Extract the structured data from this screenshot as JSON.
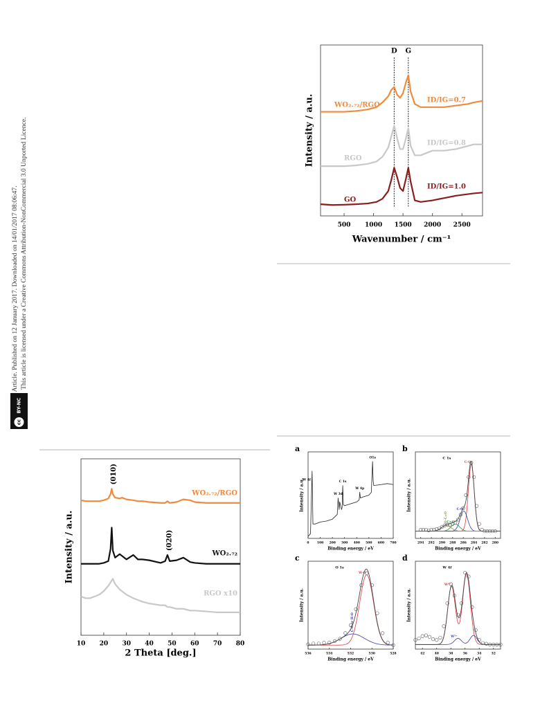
{
  "sidebar": {
    "line1": "Open Access Article. Published on 12 January 2017. Downloaded on 14/01/2017 08:06:47.",
    "line2": "This article is licensed under a Creative Commons Attribution-NonCommercial 3.0 Unported Licence.",
    "badge": {
      "cc": "cc",
      "terms": "BY-NC"
    }
  },
  "chart_data": [
    {
      "type": "line",
      "xlabel": "Wavenumber / cm⁻¹",
      "ylabel": "Intensity / a.u.",
      "x": [
        100,
        300,
        500,
        700,
        900,
        1050,
        1150,
        1250,
        1300,
        1350,
        1400,
        1450,
        1500,
        1550,
        1590,
        1630,
        1700,
        1800,
        2000,
        2200,
        2400,
        2600,
        2700,
        2850
      ],
      "xlim": [
        100,
        2850
      ],
      "xticks": [
        500,
        1000,
        1500,
        2000,
        2500
      ],
      "ylim": [
        0,
        11
      ],
      "peak_lines": [
        {
          "label": "D",
          "x": 1350
        },
        {
          "label": "G",
          "x": 1590
        }
      ],
      "series": [
        {
          "name": "WO₂.₇₂/RGO",
          "color": "#f08a3c",
          "annotation": "ID/IG=0.7",
          "values": [
            6.7,
            6.7,
            6.7,
            6.75,
            6.85,
            7.0,
            7.3,
            7.7,
            8.1,
            8.3,
            7.8,
            7.6,
            7.9,
            8.6,
            9.05,
            8.0,
            7.2,
            7.0,
            7.0,
            7.0,
            7.1,
            7.2,
            7.3,
            7.4
          ]
        },
        {
          "name": "RGO",
          "color": "#c8c8c8",
          "annotation": "ID/IG=0.8",
          "values": [
            3.2,
            3.2,
            3.2,
            3.25,
            3.35,
            3.5,
            3.8,
            4.4,
            5.1,
            5.8,
            5.0,
            4.3,
            4.3,
            5.0,
            5.65,
            4.5,
            3.9,
            3.9,
            4.2,
            4.2,
            4.3,
            4.5,
            4.6,
            4.6
          ]
        },
        {
          "name": "GO",
          "color": "#8b1c1c",
          "annotation": "ID/IG=1.0",
          "values": [
            0.75,
            0.7,
            0.72,
            0.75,
            0.8,
            0.9,
            1.1,
            1.6,
            2.3,
            3.1,
            2.5,
            1.8,
            1.6,
            2.4,
            3.1,
            2.2,
            1.0,
            0.9,
            1.0,
            1.15,
            1.3,
            1.4,
            1.45,
            1.5
          ]
        }
      ]
    },
    {
      "type": "line",
      "xlabel": "2 Theta [deg.]",
      "ylabel": "Intensity / a.u.",
      "x": [
        10,
        12,
        14,
        16,
        18,
        20,
        22,
        23,
        23.5,
        24,
        25,
        27,
        28,
        30,
        33,
        35,
        37,
        40,
        45,
        47,
        48,
        49,
        52,
        55,
        58,
        60,
        65,
        70,
        75,
        80
      ],
      "xlim": [
        10,
        80
      ],
      "xticks": [
        10,
        20,
        30,
        40,
        50,
        60,
        70,
        80
      ],
      "ylim": [
        0,
        10
      ],
      "peak_labels": [
        {
          "label": "(010)",
          "x": 23.5,
          "series": 0
        },
        {
          "label": "(020)",
          "x": 48,
          "series": 1
        }
      ],
      "series": [
        {
          "name": "WO₂.₇₂/RGO",
          "color": "#f08a3c",
          "values": [
            7.65,
            7.6,
            7.6,
            7.6,
            7.6,
            7.65,
            7.75,
            8.0,
            8.3,
            8.0,
            7.8,
            7.75,
            7.8,
            7.7,
            7.65,
            7.6,
            7.6,
            7.55,
            7.5,
            7.5,
            7.6,
            7.5,
            7.55,
            7.7,
            7.65,
            7.55,
            7.5,
            7.5,
            7.5,
            7.5
          ]
        },
        {
          "name": "WO₂.₇₂",
          "color": "#111111",
          "values": [
            4.05,
            4.05,
            4.05,
            4.05,
            4.05,
            4.1,
            4.2,
            4.9,
            6.1,
            4.8,
            4.4,
            4.6,
            4.5,
            4.3,
            4.55,
            4.3,
            4.3,
            4.25,
            4.1,
            4.2,
            4.55,
            4.2,
            4.25,
            4.4,
            4.15,
            4.1,
            4.05,
            4.05,
            4.05,
            4.05
          ]
        },
        {
          "name": "RGO x10",
          "color": "#c8c8c8",
          "values": [
            2.2,
            2.1,
            2.1,
            2.2,
            2.3,
            2.5,
            2.8,
            3.0,
            3.1,
            3.2,
            2.9,
            2.6,
            2.5,
            2.3,
            2.1,
            2.0,
            1.9,
            1.8,
            1.7,
            1.7,
            1.6,
            1.6,
            1.5,
            1.5,
            1.4,
            1.4,
            1.35,
            1.3,
            1.3,
            1.3
          ]
        }
      ]
    },
    {
      "type": "line",
      "panel": "a",
      "xlabel": "Binding energy / eV",
      "ylabel": "Intensity / a.u.",
      "x": [
        0,
        20,
        33,
        40,
        60,
        100,
        150,
        200,
        240,
        247,
        255,
        260,
        275,
        280,
        285,
        290,
        300,
        350,
        400,
        420,
        425,
        430,
        450,
        500,
        520,
        530,
        535,
        540,
        600,
        650,
        700
      ],
      "xlim": [
        0,
        700
      ],
      "xticks": [
        0,
        100,
        200,
        300,
        400,
        500,
        600,
        700
      ],
      "ylim": [
        0,
        0.9
      ],
      "peak_labels": [
        {
          "label": "W 4f",
          "x": 33,
          "series": 0
        },
        {
          "label": "W 3d",
          "x": 247,
          "series": 0
        },
        {
          "label": "C 1s",
          "x": 285,
          "series": 0
        },
        {
          "label": "W 4p",
          "x": 425,
          "series": 0
        },
        {
          "label": "O1s",
          "x": 530,
          "series": 0
        }
      ],
      "series": [
        {
          "color": "#222222",
          "values": [
            0.02,
            0.05,
            0.7,
            0.15,
            0.15,
            0.17,
            0.18,
            0.2,
            0.25,
            0.42,
            0.3,
            0.38,
            0.3,
            0.32,
            0.55,
            0.35,
            0.34,
            0.36,
            0.38,
            0.4,
            0.48,
            0.42,
            0.43,
            0.45,
            0.48,
            0.8,
            0.6,
            0.55,
            0.56,
            0.57,
            0.56
          ]
        }
      ]
    },
    {
      "type": "scatter",
      "panel": "b",
      "title": "C 1s",
      "xlabel": "Binding energy / eV",
      "ylabel": "Intensity / a.u.",
      "x": [
        294,
        293.5,
        293,
        292.5,
        292,
        291.5,
        291,
        290.5,
        290,
        289.5,
        289,
        288.5,
        288,
        287.5,
        287,
        286.5,
        286,
        285.5,
        285,
        284.5,
        284,
        283.5,
        283,
        282.5,
        282,
        281.5,
        281,
        280.5,
        280
      ],
      "values": [
        0.12,
        0.12,
        0.12,
        0.11,
        0.12,
        0.12,
        0.13,
        0.14,
        0.16,
        0.18,
        0.19,
        0.19,
        0.2,
        0.22,
        0.26,
        0.33,
        0.42,
        0.6,
        0.85,
        1.05,
        0.85,
        0.45,
        0.2,
        0.12,
        0.1,
        0.1,
        0.1,
        0.1,
        0.1
      ],
      "xlim": [
        295,
        279
      ],
      "xticks": [
        294,
        292,
        290,
        288,
        286,
        284,
        282,
        280
      ],
      "ylim": [
        0,
        1.2
      ],
      "baseline": 0.1,
      "components": [
        {
          "name": "C-C",
          "color": "#e03a3a",
          "width": 0.55,
          "peaks": [
            {
              "center": 284.5,
              "height": 0.93
            }
          ]
        },
        {
          "name": "C-O",
          "color": "#3a3aa8",
          "width": 0.7,
          "peaks": [
            {
              "center": 285.9,
              "height": 0.28
            }
          ]
        },
        {
          "name": "C=O",
          "color": "#2f8a3a",
          "width": 0.8,
          "peaks": [
            {
              "center": 287.5,
              "height": 0.1
            }
          ]
        },
        {
          "name": "O-C=O",
          "color": "#8a9a3a",
          "width": 0.9,
          "peaks": [
            {
              "center": 289.2,
              "height": 0.08
            }
          ]
        }
      ]
    },
    {
      "type": "scatter",
      "panel": "c",
      "title": "O 1s",
      "xlabel": "Binding energy / eV",
      "ylabel": "Intensity / a.u.",
      "x": [
        536,
        535.5,
        535,
        534.5,
        534,
        533.5,
        533,
        532.5,
        532,
        531.5,
        531,
        530.5,
        530,
        529.5,
        529,
        528.5,
        528
      ],
      "values": [
        0.06,
        0.07,
        0.07,
        0.08,
        0.08,
        0.1,
        0.13,
        0.2,
        0.3,
        0.5,
        0.8,
        0.95,
        0.8,
        0.45,
        0.2,
        0.08,
        0.05
      ],
      "xlim": [
        536,
        528
      ],
      "xticks": [
        536,
        534,
        532,
        530,
        528
      ],
      "ylim": [
        0,
        1.1
      ],
      "baseline": 0.05,
      "components": [
        {
          "name": "W-O",
          "color": "#e03a3a",
          "width": 0.65,
          "peaks": [
            {
              "center": 530.5,
              "height": 0.88
            }
          ]
        },
        {
          "name": "C-O or H-O",
          "color": "#3a3aa8",
          "width": 1.1,
          "peaks": [
            {
              "center": 531.8,
              "height": 0.14
            }
          ]
        }
      ]
    },
    {
      "type": "scatter",
      "panel": "d",
      "title": "W 4f",
      "xlabel": "Binding energy / eV",
      "ylabel": "Intensity / a.u.",
      "x": [
        43,
        42.5,
        42,
        41.5,
        41,
        40.5,
        40,
        39.5,
        39,
        38.5,
        38,
        37.5,
        37,
        36.5,
        36,
        35.5,
        35,
        34.5,
        34,
        33.5,
        33,
        32.5,
        32,
        31.5,
        31
      ],
      "values": [
        0.12,
        0.14,
        0.17,
        0.18,
        0.16,
        0.13,
        0.12,
        0.15,
        0.3,
        0.6,
        0.85,
        0.7,
        0.45,
        0.6,
        1.0,
        0.95,
        0.55,
        0.25,
        0.12,
        0.08,
        0.07,
        0.06,
        0.06,
        0.06,
        0.06
      ],
      "xlim": [
        43,
        31
      ],
      "xticks": [
        42,
        40,
        38,
        36,
        34,
        32
      ],
      "ylim": [
        0,
        1.15
      ],
      "baseline": 0.06,
      "components": [
        {
          "name": "W⁶⁺",
          "color": "#e03a3a",
          "width": 0.55,
          "peaks": [
            {
              "center": 37.9,
              "height": 0.76
            },
            {
              "center": 35.8,
              "height": 0.92
            }
          ]
        },
        {
          "name": "W⁵⁺",
          "color": "#3a3aa8",
          "width": 0.5,
          "peaks": [
            {
              "center": 37.0,
              "height": 0.08
            },
            {
              "center": 34.8,
              "height": 0.12
            }
          ]
        }
      ]
    }
  ]
}
